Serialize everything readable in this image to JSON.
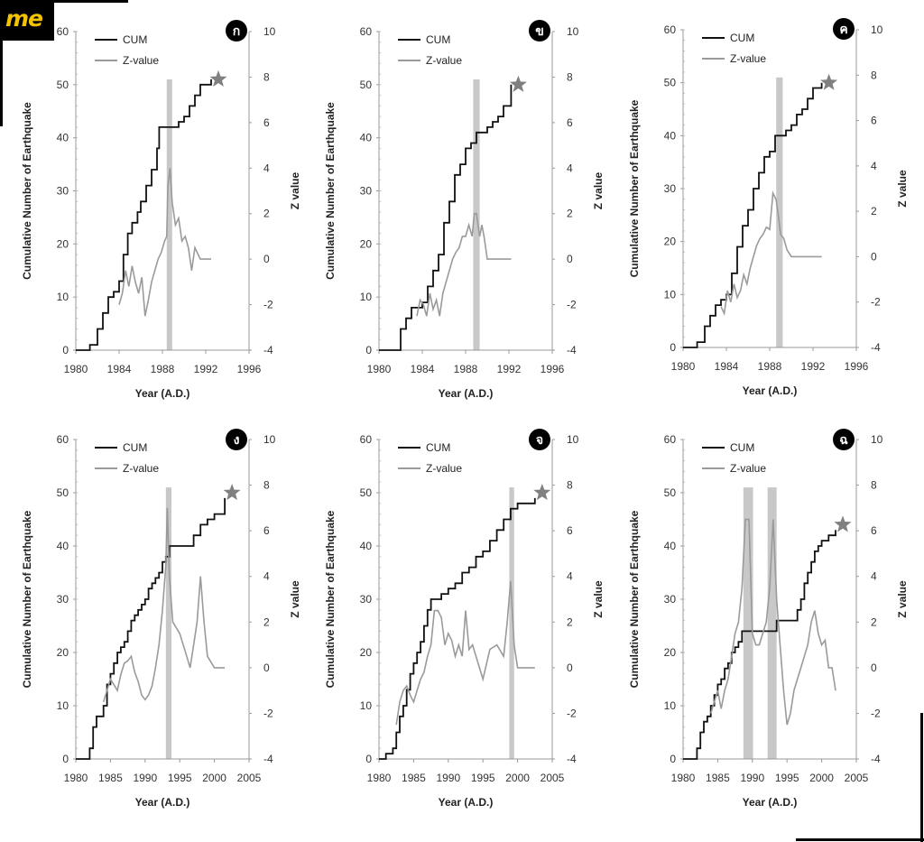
{
  "brand": {
    "logo_text": "me"
  },
  "colors": {
    "cum": "#111111",
    "z": "#9a9a9a",
    "bar": "#c8c8c8",
    "star": "#808080"
  },
  "chart_data": [
    {
      "type": "line",
      "badge": "ก",
      "xlabel": "Year (A.D.)",
      "ylabel": "Cumulative Number of Earthquake",
      "y2label": "Z value",
      "legend_placement": "top-left",
      "xlim": [
        1980,
        1996
      ],
      "xticks": [
        1980,
        1984,
        1988,
        1992,
        1996
      ],
      "ylim": [
        0,
        60
      ],
      "y2lim": [
        -4,
        10
      ],
      "star": [
        1992.5,
        51
      ],
      "series": [
        {
          "name": "CUM",
          "axis": "left",
          "step": true,
          "x": [
            1980,
            1981.3,
            1981.3,
            1982,
            1982.5,
            1983,
            1983.5,
            1984,
            1984.4,
            1984.8,
            1985.2,
            1985.7,
            1986,
            1986.5,
            1987,
            1987.5,
            1987.7,
            1989.5,
            1990,
            1990.5,
            1991,
            1991.5,
            1992.5
          ],
          "y": [
            0,
            0,
            1,
            4,
            7,
            10,
            11,
            13,
            18,
            22,
            24,
            26,
            28,
            31,
            34,
            38,
            42,
            43,
            44,
            46,
            48,
            50,
            51
          ]
        },
        {
          "name": "Z-value",
          "axis": "right",
          "step": false,
          "x": [
            1984,
            1984.3,
            1984.6,
            1984.9,
            1985.2,
            1985.5,
            1985.8,
            1986.1,
            1986.4,
            1986.7,
            1987,
            1987.3,
            1987.6,
            1987.9,
            1988.2,
            1988.4,
            1988.5,
            1988.7,
            1988.9,
            1989.2,
            1989.5,
            1989.8,
            1990.1,
            1990.4,
            1990.7,
            1991,
            1991.5,
            1992,
            1992.5
          ],
          "y": [
            -2,
            -1.5,
            -0.5,
            -1.2,
            -0.3,
            -1,
            -1.5,
            -0.8,
            -2.5,
            -1.8,
            -1,
            -0.5,
            0,
            0.3,
            0.8,
            1,
            3.2,
            4,
            2.5,
            1.5,
            1.8,
            0.8,
            1,
            0.5,
            -0.5,
            0.5,
            0,
            0,
            0
          ]
        }
      ],
      "bars": [
        [
          1988.4,
          1988.9
        ]
      ]
    },
    {
      "type": "line",
      "badge": "ข",
      "xlabel": "Year (A.D.)",
      "ylabel": "Cumulative Number of Earthquake",
      "y2label": "Z value",
      "legend_placement": "top-left",
      "xlim": [
        1980,
        1996
      ],
      "xticks": [
        1980,
        1984,
        1988,
        1992,
        1996
      ],
      "ylim": [
        0,
        60
      ],
      "y2lim": [
        -4,
        10
      ],
      "star": [
        1992.2,
        50
      ],
      "series": [
        {
          "name": "CUM",
          "axis": "left",
          "step": true,
          "x": [
            1980,
            1982,
            1982.5,
            1983,
            1983.5,
            1984,
            1984.5,
            1985,
            1985.5,
            1986,
            1986.5,
            1987,
            1987.5,
            1988,
            1988.5,
            1989,
            1989.5,
            1990,
            1990.5,
            1991,
            1991.5,
            1992.2
          ],
          "y": [
            0,
            4,
            6,
            8,
            8,
            9,
            12,
            15,
            18,
            24,
            28,
            33,
            35,
            38,
            39,
            41,
            41,
            42,
            43,
            44,
            46,
            50
          ]
        },
        {
          "name": "Z-value",
          "axis": "right",
          "step": false,
          "x": [
            1983.5,
            1983.8,
            1984.1,
            1984.4,
            1984.7,
            1985,
            1985.3,
            1985.6,
            1985.9,
            1986.2,
            1986.5,
            1986.8,
            1987.1,
            1987.4,
            1987.7,
            1988,
            1988.3,
            1988.6,
            1988.8,
            1989,
            1989.3,
            1989.5,
            1989.7,
            1990,
            1991,
            1992.2
          ],
          "y": [
            -2.5,
            -1.8,
            -2,
            -2.5,
            -1.5,
            -2.2,
            -1.8,
            -2.5,
            -1.5,
            -1,
            -0.5,
            0,
            0.3,
            0.5,
            1,
            1,
            1.5,
            1,
            2,
            2,
            1,
            1.5,
            1,
            0,
            0,
            0
          ]
        }
      ],
      "bars": [
        [
          1988.7,
          1989.3
        ]
      ]
    },
    {
      "type": "line",
      "badge": "ค",
      "xlabel": "Year (A.D.)",
      "ylabel": "Cumulative Number of Earthquake",
      "y2label": "Z value",
      "legend_placement": "top-left",
      "xlim": [
        1980,
        1996
      ],
      "xticks": [
        1980,
        1984,
        1988,
        1992,
        1996
      ],
      "ylim": [
        0,
        60
      ],
      "y2lim": [
        -4,
        10
      ],
      "star": [
        1992.8,
        50
      ],
      "series": [
        {
          "name": "CUM",
          "axis": "left",
          "step": true,
          "x": [
            1980,
            1981.3,
            1982,
            1982.5,
            1983,
            1983.5,
            1984,
            1984.5,
            1985,
            1985.5,
            1986,
            1986.5,
            1987,
            1987.5,
            1988,
            1988.5,
            1989,
            1989.5,
            1990,
            1990.5,
            1991,
            1991.5,
            1992,
            1992.8
          ],
          "y": [
            0,
            1,
            4,
            6,
            8,
            9,
            10,
            14,
            19,
            23,
            26,
            30,
            33,
            36,
            37,
            40,
            40,
            41,
            42,
            44,
            45,
            47,
            49,
            50
          ]
        },
        {
          "name": "Z-value",
          "axis": "right",
          "step": false,
          "x": [
            1983.5,
            1983.8,
            1984.1,
            1984.4,
            1984.7,
            1985,
            1985.3,
            1985.6,
            1985.9,
            1986.2,
            1986.5,
            1986.8,
            1987.1,
            1987.4,
            1987.7,
            1988,
            1988.3,
            1988.6,
            1988.8,
            1989,
            1989.3,
            1989.6,
            1990,
            1991,
            1992.8
          ],
          "y": [
            -2.2,
            -2.5,
            -1.5,
            -2,
            -1.2,
            -1.8,
            -1.5,
            -0.8,
            -1.2,
            -0.5,
            0,
            0.5,
            0.8,
            1,
            1.3,
            1.2,
            2.8,
            2.5,
            1.8,
            1,
            0.8,
            0.3,
            0,
            0,
            0
          ]
        }
      ],
      "bars": [
        [
          1988.6,
          1989.2
        ]
      ]
    },
    {
      "type": "line",
      "badge": "ง",
      "xlabel": "Year (A.D.)",
      "ylabel": "Cumulative Number of Earthquake",
      "y2label": "Z value",
      "legend_placement": "top-left",
      "xlim": [
        1980,
        2005
      ],
      "xticks": [
        1980,
        1985,
        1990,
        1995,
        2000,
        2005
      ],
      "ylim": [
        0,
        60
      ],
      "y2lim": [
        -4,
        10
      ],
      "star": [
        2001.5,
        50
      ],
      "series": [
        {
          "name": "CUM",
          "axis": "left",
          "step": true,
          "x": [
            1980,
            1982,
            1982.5,
            1983,
            1984,
            1984.5,
            1985,
            1985.5,
            1986,
            1986.5,
            1987,
            1987.5,
            1988,
            1988.5,
            1989,
            1989.5,
            1990,
            1990.5,
            1991,
            1991.5,
            1992,
            1992.5,
            1993,
            1993.5,
            1996,
            1997,
            1998,
            1999,
            2000,
            2001.5
          ],
          "y": [
            0,
            2,
            6,
            8,
            10,
            14,
            16,
            18,
            20,
            21,
            22,
            24,
            26,
            27,
            28,
            29,
            30,
            32,
            33,
            34,
            35,
            37,
            38,
            40,
            40,
            42,
            44,
            45,
            46,
            49
          ]
        },
        {
          "name": "Z-value",
          "axis": "right",
          "step": false,
          "x": [
            1984,
            1985,
            1986,
            1986.5,
            1987,
            1987.5,
            1988,
            1988.5,
            1989,
            1989.5,
            1990,
            1990.5,
            1991,
            1991.5,
            1992,
            1992.5,
            1993,
            1993.2,
            1993.5,
            1994,
            1995,
            1996,
            1996.5,
            1997,
            1997.5,
            1998,
            1998.5,
            1999,
            2000,
            2001.5
          ],
          "y": [
            -1.5,
            -0.5,
            -1,
            -0.3,
            0.2,
            0.3,
            0.5,
            -0.2,
            -0.6,
            -1.2,
            -1.4,
            -1.2,
            -0.8,
            0,
            1,
            2.5,
            4.5,
            7,
            4,
            2,
            1.5,
            0.5,
            0,
            1,
            2,
            4,
            2,
            0.5,
            0,
            0
          ]
        }
      ],
      "bars": [
        [
          1993,
          1993.8
        ]
      ]
    },
    {
      "type": "line",
      "badge": "จ",
      "xlabel": "Year (A.D.)",
      "ylabel": "Cumulative Number of Earthquake",
      "y2label": "Z value",
      "legend_placement": "top-left",
      "xlim": [
        1980,
        2005
      ],
      "xticks": [
        1980,
        1985,
        1990,
        1995,
        2000,
        2005
      ],
      "ylim": [
        0,
        60
      ],
      "y2lim": [
        -4,
        10
      ],
      "star": [
        2002.5,
        50
      ],
      "series": [
        {
          "name": "CUM",
          "axis": "left",
          "step": true,
          "x": [
            1980,
            1981,
            1982,
            1982.5,
            1983,
            1983.5,
            1984,
            1984.5,
            1985,
            1985.5,
            1986,
            1986.5,
            1987,
            1987.5,
            1988,
            1989,
            1990,
            1991,
            1992,
            1993,
            1994,
            1995,
            1996,
            1997,
            1998,
            1999,
            2000,
            2001,
            2002.5
          ],
          "y": [
            0,
            1,
            2,
            5,
            8,
            10,
            13,
            16,
            18,
            20,
            22,
            25,
            28,
            30,
            30,
            31,
            32,
            33,
            35,
            36,
            38,
            39,
            41,
            43,
            45,
            47,
            48,
            48,
            49
          ]
        },
        {
          "name": "Z-value",
          "axis": "right",
          "step": false,
          "x": [
            1982.5,
            1983,
            1983.5,
            1984,
            1984.5,
            1985,
            1985.5,
            1986,
            1986.5,
            1987,
            1987.5,
            1988,
            1988.5,
            1989,
            1989.5,
            1990,
            1990.5,
            1991,
            1991.5,
            1992,
            1992.5,
            1993,
            1993.5,
            1994,
            1995,
            1996,
            1997,
            1998,
            1998.5,
            1999,
            1999.5,
            2000,
            2002.5
          ],
          "y": [
            -2.5,
            -1.5,
            -1,
            -0.8,
            -1.2,
            -1.5,
            -1,
            -0.5,
            -0.2,
            0.5,
            1,
            2.5,
            2.5,
            2.2,
            1,
            1.5,
            1.2,
            0.5,
            1,
            0.5,
            2.5,
            0.8,
            1,
            0.5,
            -0.5,
            0.8,
            1,
            0.5,
            2,
            3.8,
            1,
            0,
            0
          ]
        }
      ],
      "bars": [
        [
          1998.8,
          1999.5
        ]
      ]
    },
    {
      "type": "line",
      "badge": "ฉ",
      "xlabel": "Year (A.D.)",
      "ylabel": "Cumulative Number of Earthquake",
      "y2label": "Z value",
      "legend_placement": "top-left",
      "xlim": [
        1980,
        2005
      ],
      "xticks": [
        1980,
        1985,
        1990,
        1995,
        2000,
        2005
      ],
      "ylim": [
        0,
        60
      ],
      "y2lim": [
        -4,
        10
      ],
      "star": [
        2002,
        44
      ],
      "series": [
        {
          "name": "CUM",
          "axis": "left",
          "step": true,
          "x": [
            1980,
            1982,
            1982.5,
            1983,
            1983.5,
            1984,
            1984.5,
            1985,
            1985.5,
            1986,
            1986.5,
            1987,
            1987.5,
            1988,
            1988.5,
            1992.5,
            1993.5,
            1996,
            1996.5,
            1997,
            1997.5,
            1998,
            1998.5,
            1999,
            1999.5,
            2000,
            2001,
            2002
          ],
          "y": [
            0,
            2,
            5,
            7,
            8,
            10,
            12,
            14,
            15,
            17,
            18,
            20,
            21,
            22,
            24,
            24,
            26,
            26,
            28,
            30,
            33,
            35,
            37,
            39,
            40,
            41,
            42,
            43
          ]
        },
        {
          "name": "Z-value",
          "axis": "right",
          "step": false,
          "x": [
            1984,
            1984.5,
            1985,
            1985.5,
            1986,
            1986.5,
            1987,
            1987.5,
            1988,
            1988.5,
            1989,
            1989.5,
            1990,
            1990.5,
            1991,
            1991.5,
            1992,
            1992.5,
            1993,
            1993.5,
            1994,
            1994.5,
            1995,
            1995.5,
            1996,
            1996.5,
            1997,
            1997.5,
            1998,
            1998.5,
            1999,
            1999.5,
            2000,
            2000.5,
            2001,
            2001.5,
            2002
          ],
          "y": [
            -2,
            -1.5,
            -1,
            -1.8,
            -1,
            -0.5,
            0.5,
            1.5,
            2,
            3.5,
            6.5,
            6.5,
            1.5,
            1,
            1,
            1.5,
            2,
            3.5,
            6.5,
            3,
            1,
            -1,
            -2.5,
            -2,
            -1,
            -0.5,
            0,
            0.5,
            1,
            2,
            2.5,
            1.5,
            1,
            1.2,
            0,
            0,
            -1
          ]
        }
      ],
      "bars": [
        [
          1988.7,
          1990.1
        ],
        [
          1992.2,
          1993.5
        ]
      ]
    }
  ]
}
